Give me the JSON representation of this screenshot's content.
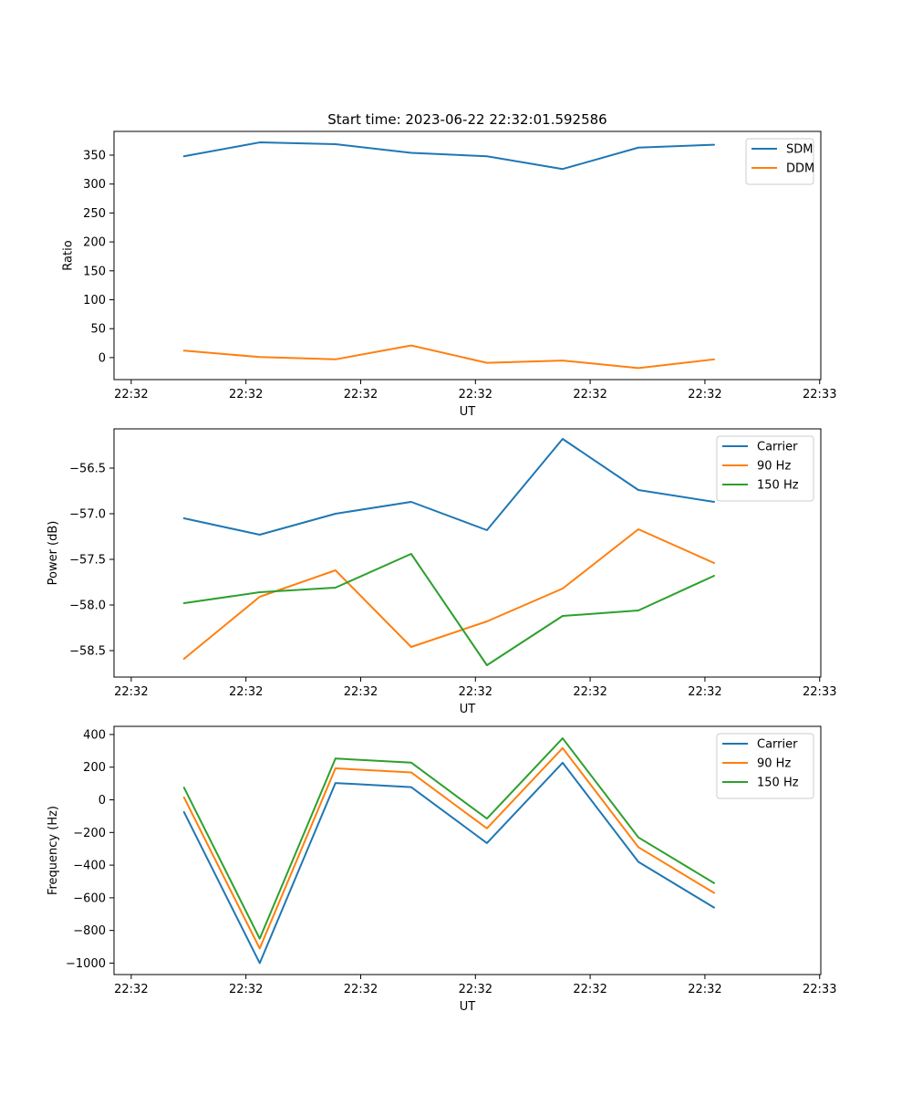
{
  "figure_title": "Start time: 2023-06-22 22:32:01.592586",
  "chart_data": [
    {
      "type": "line",
      "title": "Start time: 2023-06-22 22:32:01.592586",
      "xlabel": "UT",
      "ylabel": "Ratio",
      "x_tick_labels": [
        "22:32",
        "22:32",
        "22:32",
        "22:32",
        "22:32",
        "22:32",
        "22:32"
      ],
      "x_last_tick_label": "22:33",
      "x_ticks_seconds": [
        0,
        10,
        20,
        30,
        40,
        50,
        60
      ],
      "xlim_seconds": [
        -1.5,
        60.1
      ],
      "x_seconds": [
        4.6,
        11.2,
        17.8,
        24.4,
        31.0,
        37.6,
        44.2,
        50.8
      ],
      "ylim": [
        -38,
        391
      ],
      "y_ticks": [
        0,
        50,
        100,
        150,
        200,
        250,
        300,
        350
      ],
      "legend_position": "top-right",
      "series": [
        {
          "name": "SDM",
          "color": "#1f77b4",
          "values": [
            348,
            372,
            369,
            354,
            348,
            326,
            363,
            368
          ]
        },
        {
          "name": "DDM",
          "color": "#ff7f0e",
          "values": [
            12,
            1,
            -3,
            21,
            -9,
            -5,
            -18,
            -3
          ]
        }
      ]
    },
    {
      "type": "line",
      "xlabel": "UT",
      "ylabel": "Power (dB)",
      "x_tick_labels": [
        "22:32",
        "22:32",
        "22:32",
        "22:32",
        "22:32",
        "22:32",
        "22:32"
      ],
      "x_last_tick_label": "22:33",
      "x_ticks_seconds": [
        0,
        10,
        20,
        30,
        40,
        50,
        60
      ],
      "xlim_seconds": [
        -1.5,
        60.1
      ],
      "x_seconds": [
        4.6,
        11.2,
        17.8,
        24.4,
        31.0,
        37.6,
        44.2,
        50.8
      ],
      "ylim": [
        -58.79,
        -56.07
      ],
      "y_ticks": [
        -58.5,
        -58.0,
        -57.5,
        -57.0,
        -56.5
      ],
      "y_tick_labels": [
        "−58.5",
        "−58.0",
        "−57.5",
        "−57.0",
        "−56.5"
      ],
      "legend_position": "top-right",
      "series": [
        {
          "name": "Carrier",
          "color": "#1f77b4",
          "values": [
            -57.05,
            -57.23,
            -57.0,
            -56.87,
            -57.18,
            -56.18,
            -56.74,
            -56.87
          ]
        },
        {
          "name": "90 Hz",
          "color": "#ff7f0e",
          "values": [
            -58.59,
            -57.91,
            -57.62,
            -58.46,
            -58.18,
            -57.82,
            -57.17,
            -57.54
          ]
        },
        {
          "name": "150 Hz",
          "color": "#2ca02c",
          "values": [
            -57.98,
            -57.86,
            -57.81,
            -57.44,
            -58.66,
            -58.12,
            -58.06,
            -57.68
          ]
        }
      ]
    },
    {
      "type": "line",
      "xlabel": "UT",
      "ylabel": "Frequency (Hz)",
      "x_tick_labels": [
        "22:32",
        "22:32",
        "22:32",
        "22:32",
        "22:32",
        "22:32",
        "22:32"
      ],
      "x_last_tick_label": "22:33",
      "x_ticks_seconds": [
        0,
        10,
        20,
        30,
        40,
        50,
        60
      ],
      "xlim_seconds": [
        -1.5,
        60.1
      ],
      "x_seconds": [
        4.6,
        11.2,
        17.8,
        24.4,
        31.0,
        37.6,
        44.2,
        50.8
      ],
      "ylim": [
        -1070,
        450
      ],
      "y_ticks": [
        -1000,
        -800,
        -600,
        -400,
        -200,
        0,
        200,
        400
      ],
      "y_tick_labels": [
        "−1000",
        "−800",
        "−600",
        "−400",
        "−200",
        "0",
        "200",
        "400"
      ],
      "legend_position": "top-right",
      "series": [
        {
          "name": "Carrier",
          "color": "#1f77b4",
          "values": [
            -75,
            -1000,
            103,
            78,
            -265,
            227,
            -380,
            -660
          ]
        },
        {
          "name": "90 Hz",
          "color": "#ff7f0e",
          "values": [
            15,
            -910,
            193,
            168,
            -175,
            317,
            -290,
            -570
          ]
        },
        {
          "name": "150 Hz",
          "color": "#2ca02c",
          "values": [
            75,
            -850,
            253,
            228,
            -115,
            377,
            -230,
            -510
          ]
        }
      ]
    }
  ]
}
